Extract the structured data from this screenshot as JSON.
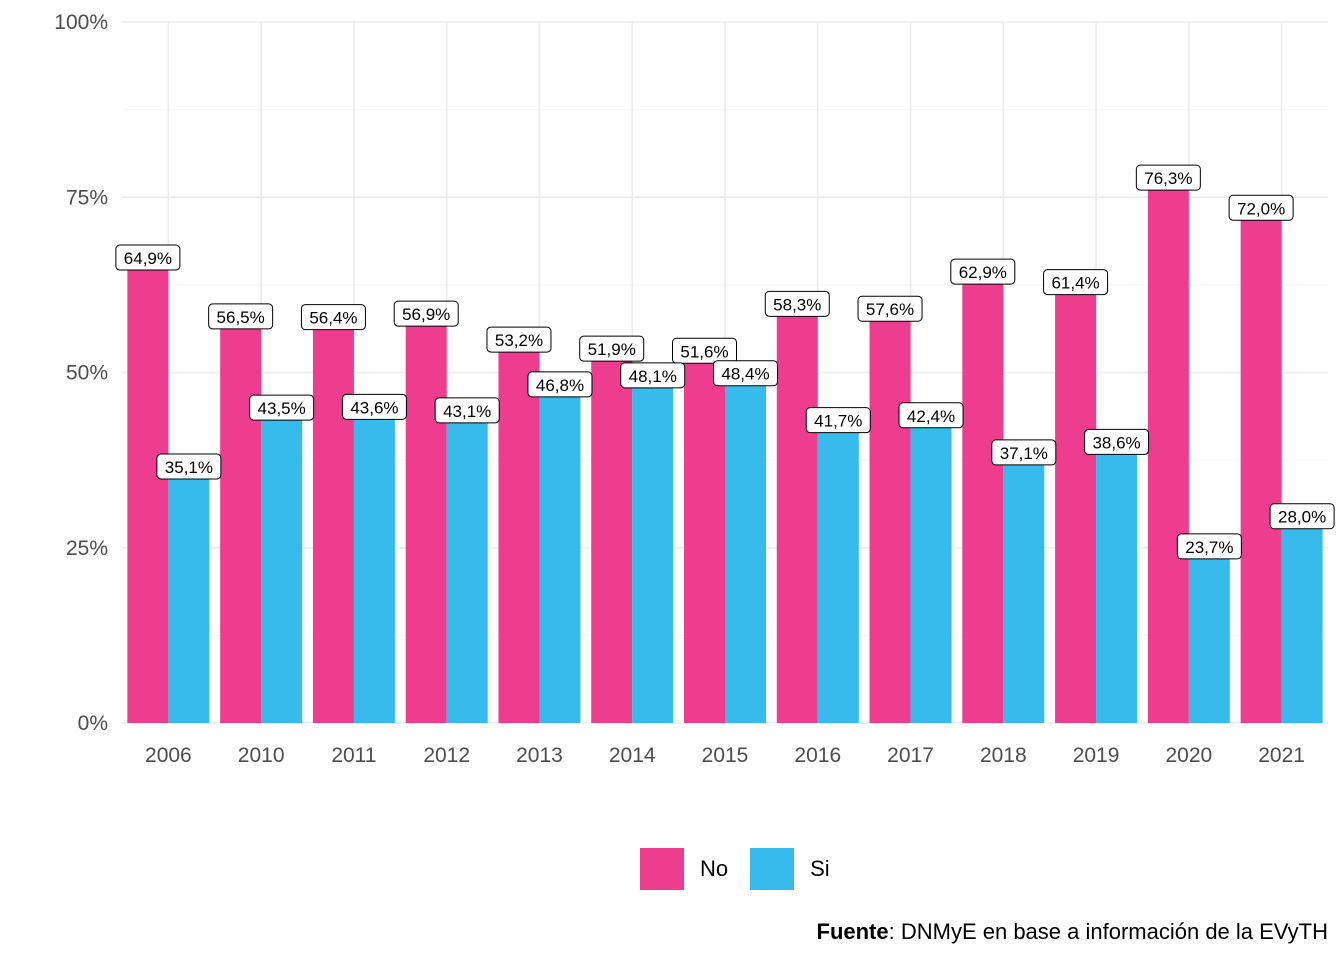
{
  "chart_data": {
    "type": "bar",
    "categories": [
      "2006",
      "2010",
      "2011",
      "2012",
      "2013",
      "2014",
      "2015",
      "2016",
      "2017",
      "2018",
      "2019",
      "2020",
      "2021"
    ],
    "series": [
      {
        "name": "No",
        "color": "#EE3D8F",
        "values": [
          64.9,
          56.5,
          56.4,
          56.9,
          53.2,
          51.9,
          51.6,
          58.3,
          57.6,
          62.9,
          61.4,
          76.3,
          72.0
        ],
        "labels": [
          "64,9%",
          "56,5%",
          "56,4%",
          "56,9%",
          "53,2%",
          "51,9%",
          "51,6%",
          "58,3%",
          "57,6%",
          "62,9%",
          "61,4%",
          "76,3%",
          "72,0%"
        ]
      },
      {
        "name": "Si",
        "color": "#37BBED",
        "values": [
          35.1,
          43.5,
          43.6,
          43.1,
          46.8,
          48.1,
          48.4,
          41.7,
          42.4,
          37.1,
          38.6,
          23.7,
          28.0
        ],
        "labels": [
          "35,1%",
          "43,5%",
          "43,6%",
          "43,1%",
          "46,8%",
          "48,1%",
          "48,4%",
          "41,7%",
          "42,4%",
          "37,1%",
          "38,6%",
          "23,7%",
          "28,0%"
        ]
      }
    ],
    "y_ticks": [
      0,
      25,
      50,
      75,
      100
    ],
    "y_tick_labels": [
      "0%",
      "25%",
      "50%",
      "75%",
      "100%"
    ],
    "ylim": [
      0,
      100
    ],
    "grid": true,
    "legend": "bottom"
  },
  "caption": {
    "bold": "Fuente",
    "rest": ": DNMyE en base a información de la EVyTH"
  }
}
